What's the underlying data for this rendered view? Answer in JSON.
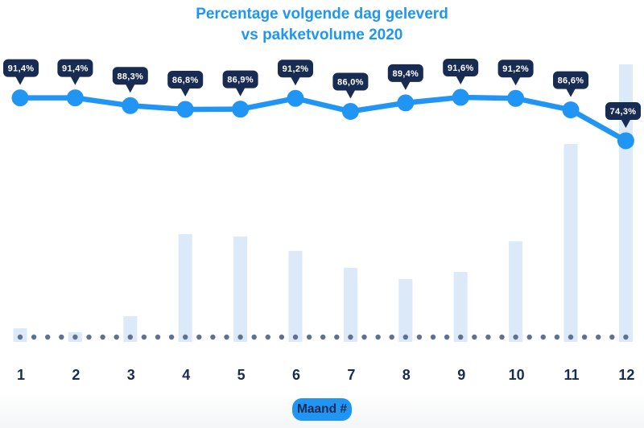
{
  "title": {
    "line1": "Percentage volgende dag geleverd",
    "line2": "vs pakketvolume 2020"
  },
  "x_axis": {
    "badge_label": "Maand #",
    "tick_labels": [
      "1",
      "2",
      "3",
      "4",
      "5",
      "6",
      "7",
      "8",
      "9",
      "10",
      "11",
      "12"
    ]
  },
  "chart_data": {
    "type": "combo line + bar",
    "title": "Percentage volgende dag geleverd vs pakketvolume 2020",
    "x": [
      1,
      2,
      3,
      4,
      5,
      6,
      7,
      8,
      9,
      10,
      11,
      12
    ],
    "xlabel": "Maand #",
    "ylabel": "",
    "legend_position": "none",
    "grid": "dotted baseline only, no y-axis shown",
    "series": [
      {
        "name": "Percentage volgende dag geleverd",
        "type": "line",
        "unit": "%",
        "values": [
          91.4,
          91.4,
          88.3,
          86.8,
          86.9,
          91.2,
          86.0,
          89.4,
          91.6,
          91.2,
          86.6,
          74.3
        ],
        "labels": [
          "91,4%",
          "91,4%",
          "88,3%",
          "86,8%",
          "86,9%",
          "91,2%",
          "86,0%",
          "89,4%",
          "91,6%",
          "91,2%",
          "86,6%",
          "74,3%"
        ]
      },
      {
        "name": "Pakketvolume 2020",
        "type": "bar",
        "unit": "relative volume (axis unlabeled; estimated, max month = 100)",
        "values": [
          4.9,
          3.5,
          9.3,
          38.8,
          38.0,
          32.8,
          26.7,
          22.6,
          25.2,
          36.2,
          71.3,
          100
        ]
      }
    ]
  },
  "colors": {
    "accent_blue": "#2095F3",
    "title_blue": "#1E96F2",
    "tooltip_navy": "#182B52",
    "bar_fill": "#DBE9F8",
    "dot_slate": "#5E7191",
    "tooltip_text": "#FFFFFF",
    "background": "#FFFFFF"
  }
}
